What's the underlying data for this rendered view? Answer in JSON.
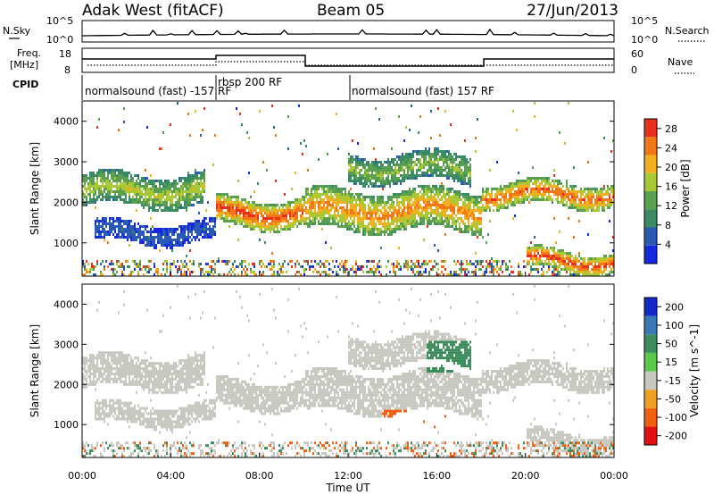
{
  "header": {
    "site": "Adak West (fitACF)",
    "beam": "Beam 05",
    "date": "27/Jun/2013"
  },
  "nsky_panel": {
    "left_label": "N.Sky",
    "right_label": "N.Search",
    "left_ticks": [
      "10^5",
      "10^0"
    ],
    "right_ticks": [
      "10^5",
      "10^0"
    ]
  },
  "freq_panel": {
    "left_label_line1": "Freq.",
    "left_label_line2": "[MHz]",
    "left_ticks": [
      18,
      8
    ],
    "right_ticks": [
      60,
      0
    ],
    "right_label": "Nave"
  },
  "cpid_panel": {
    "label": "CPID",
    "segments": [
      "normalsound (fast) -157 RF",
      "rbsp 200 RF",
      "normalsound (fast) 157 RF"
    ]
  },
  "chart_data": [
    {
      "type": "heatmap",
      "name": "power",
      "ylabel": "Slant Range [km]",
      "ylim": [
        180,
        4500
      ],
      "yticks": [
        1000,
        2000,
        3000,
        4000
      ],
      "colorbar_label": "Power [dB]",
      "colorbar_ticks": [
        4,
        8,
        12,
        16,
        20,
        24,
        28
      ],
      "colorbar_range": [
        0,
        30
      ],
      "colors": [
        "#1428e0",
        "#2a5ab4",
        "#3a8a64",
        "#5aa050",
        "#a8c838",
        "#f0b020",
        "#f07818",
        "#e83020"
      ],
      "echo_bands_km": [
        {
          "start_h": 0.0,
          "end_h": 5.5,
          "range": [
            1900,
            2700
          ],
          "value": 18
        },
        {
          "start_h": 0.5,
          "end_h": 6.0,
          "range": [
            1000,
            1500
          ],
          "value": 6
        },
        {
          "start_h": 6.0,
          "end_h": 10.0,
          "range": [
            1400,
            2100
          ],
          "value": 28
        },
        {
          "start_h": 10.0,
          "end_h": 18.0,
          "range": [
            1300,
            2300
          ],
          "value": 24
        },
        {
          "start_h": 12.0,
          "end_h": 17.5,
          "range": [
            2500,
            3200
          ],
          "value": 16
        },
        {
          "start_h": 18.0,
          "end_h": 24.0,
          "range": [
            1900,
            2500
          ],
          "value": 26
        },
        {
          "start_h": 20.0,
          "end_h": 24.0,
          "range": [
            300,
            800
          ],
          "value": 28
        }
      ]
    },
    {
      "type": "heatmap",
      "name": "velocity",
      "ylabel": "Slant Range [km]",
      "ylim": [
        180,
        4500
      ],
      "yticks": [
        1000,
        2000,
        3000,
        4000
      ],
      "colorbar_label": "Velocity [m s^-1]",
      "colorbar_ticks": [
        200,
        100,
        50,
        15,
        -15,
        -50,
        -100,
        -200
      ],
      "colors": [
        "#1428c8",
        "#3878b8",
        "#3c8c5c",
        "#5ac84a",
        "#c8c8c0",
        "#f0a020",
        "#f06010",
        "#e01010"
      ],
      "features": [
        {
          "start_h": 15.5,
          "end_h": 17.7,
          "range": [
            2300,
            3100
          ],
          "value": 60
        },
        {
          "start_h": 13.5,
          "end_h": 16.5,
          "range": [
            900,
            1400
          ],
          "value": -60
        }
      ]
    }
  ],
  "x_axis": {
    "label": "Time UT",
    "ticks": [
      "00:00",
      "04:00",
      "08:00",
      "12:00",
      "16:00",
      "20:00",
      "00:00"
    ],
    "range_h": [
      0,
      24
    ]
  }
}
